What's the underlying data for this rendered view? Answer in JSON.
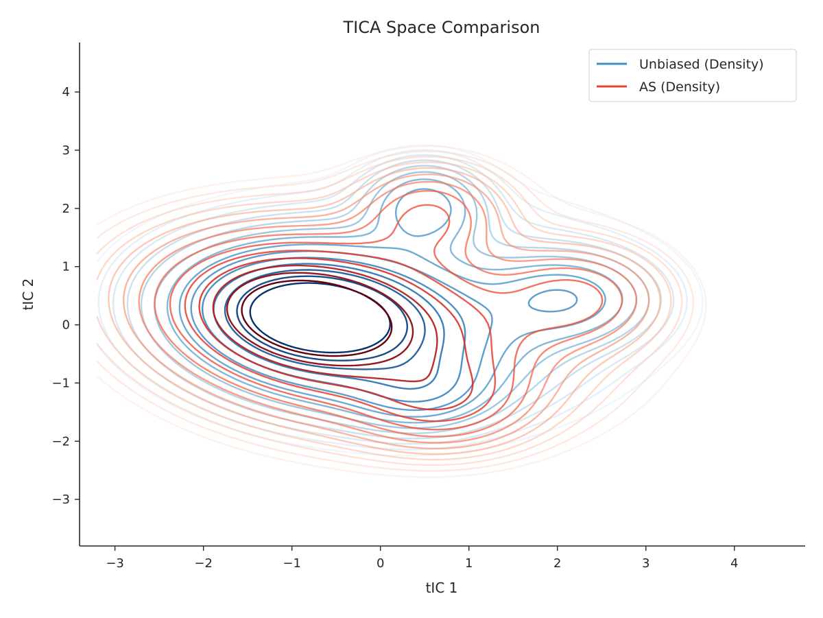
{
  "chart_data": {
    "type": "contour",
    "title": "TICA Space Comparison",
    "xlabel": "tIC 1",
    "ylabel": "tIC 2",
    "xlim": [
      -3.4,
      4.8
    ],
    "ylim": [
      -3.8,
      4.85
    ],
    "xticks": [
      -3,
      -2,
      -1,
      0,
      1,
      2,
      3,
      4
    ],
    "yticks": [
      -3,
      -2,
      -1,
      0,
      1,
      2,
      3,
      4
    ],
    "x_tick_labels": [
      "−3",
      "−2",
      "−1",
      "0",
      "1",
      "2",
      "3",
      "4"
    ],
    "y_tick_labels": [
      "−3",
      "−2",
      "−1",
      "0",
      "1",
      "2",
      "3",
      "4"
    ],
    "grid": false,
    "legend_position": "top-right",
    "series": [
      {
        "name": "Unbiased (Density)",
        "color": "#3a8fc4",
        "colormap": "Blues",
        "kind": "density contours",
        "peak": [
          -0.75,
          0.15
        ],
        "secondary_modes": [
          [
            0.5,
            2.1
          ],
          [
            2.1,
            0.45
          ],
          [
            0.45,
            -1.1
          ]
        ]
      },
      {
        "name": "AS (Density)",
        "color": "#e8412f",
        "colormap": "Reds",
        "kind": "density contours",
        "peak": [
          -0.8,
          0.15
        ],
        "secondary_modes": [
          [
            0.5,
            1.9
          ],
          [
            2.2,
            0.45
          ],
          [
            0.7,
            -1.3
          ]
        ]
      }
    ]
  }
}
